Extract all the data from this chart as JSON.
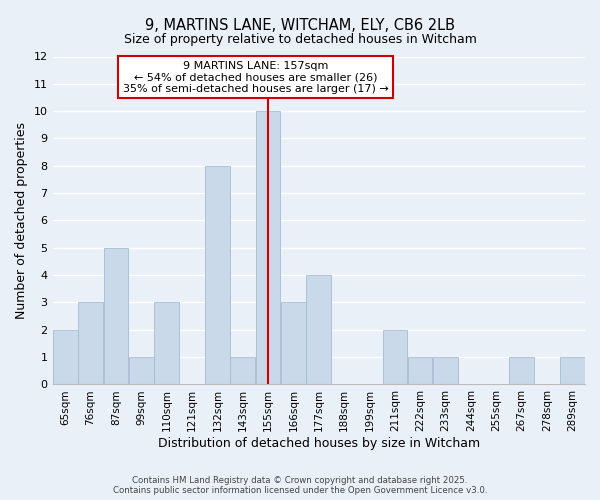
{
  "title": "9, MARTINS LANE, WITCHAM, ELY, CB6 2LB",
  "subtitle": "Size of property relative to detached houses in Witcham",
  "xlabel": "Distribution of detached houses by size in Witcham",
  "ylabel": "Number of detached properties",
  "bin_labels": [
    "65sqm",
    "76sqm",
    "87sqm",
    "99sqm",
    "110sqm",
    "121sqm",
    "132sqm",
    "143sqm",
    "155sqm",
    "166sqm",
    "177sqm",
    "188sqm",
    "199sqm",
    "211sqm",
    "222sqm",
    "233sqm",
    "244sqm",
    "255sqm",
    "267sqm",
    "278sqm",
    "289sqm"
  ],
  "bar_values": [
    2,
    3,
    5,
    1,
    3,
    0,
    8,
    1,
    10,
    3,
    4,
    0,
    0,
    2,
    1,
    1,
    0,
    0,
    1,
    0,
    1
  ],
  "bar_color": "#c9d9ea",
  "bar_edgecolor": "#9ab4cc",
  "reference_line_x_label": "155sqm",
  "reference_line_color": "#cc0000",
  "ylim": [
    0,
    12
  ],
  "yticks": [
    0,
    1,
    2,
    3,
    4,
    5,
    6,
    7,
    8,
    9,
    10,
    11,
    12
  ],
  "annotation_title": "9 MARTINS LANE: 157sqm",
  "annotation_line1": "← 54% of detached houses are smaller (26)",
  "annotation_line2": "35% of semi-detached houses are larger (17) →",
  "annotation_box_edgecolor": "#cc0000",
  "background_color": "#eaf0f8",
  "grid_color": "#ffffff",
  "footer_line1": "Contains HM Land Registry data © Crown copyright and database right 2025.",
  "footer_line2": "Contains public sector information licensed under the Open Government Licence v3.0."
}
